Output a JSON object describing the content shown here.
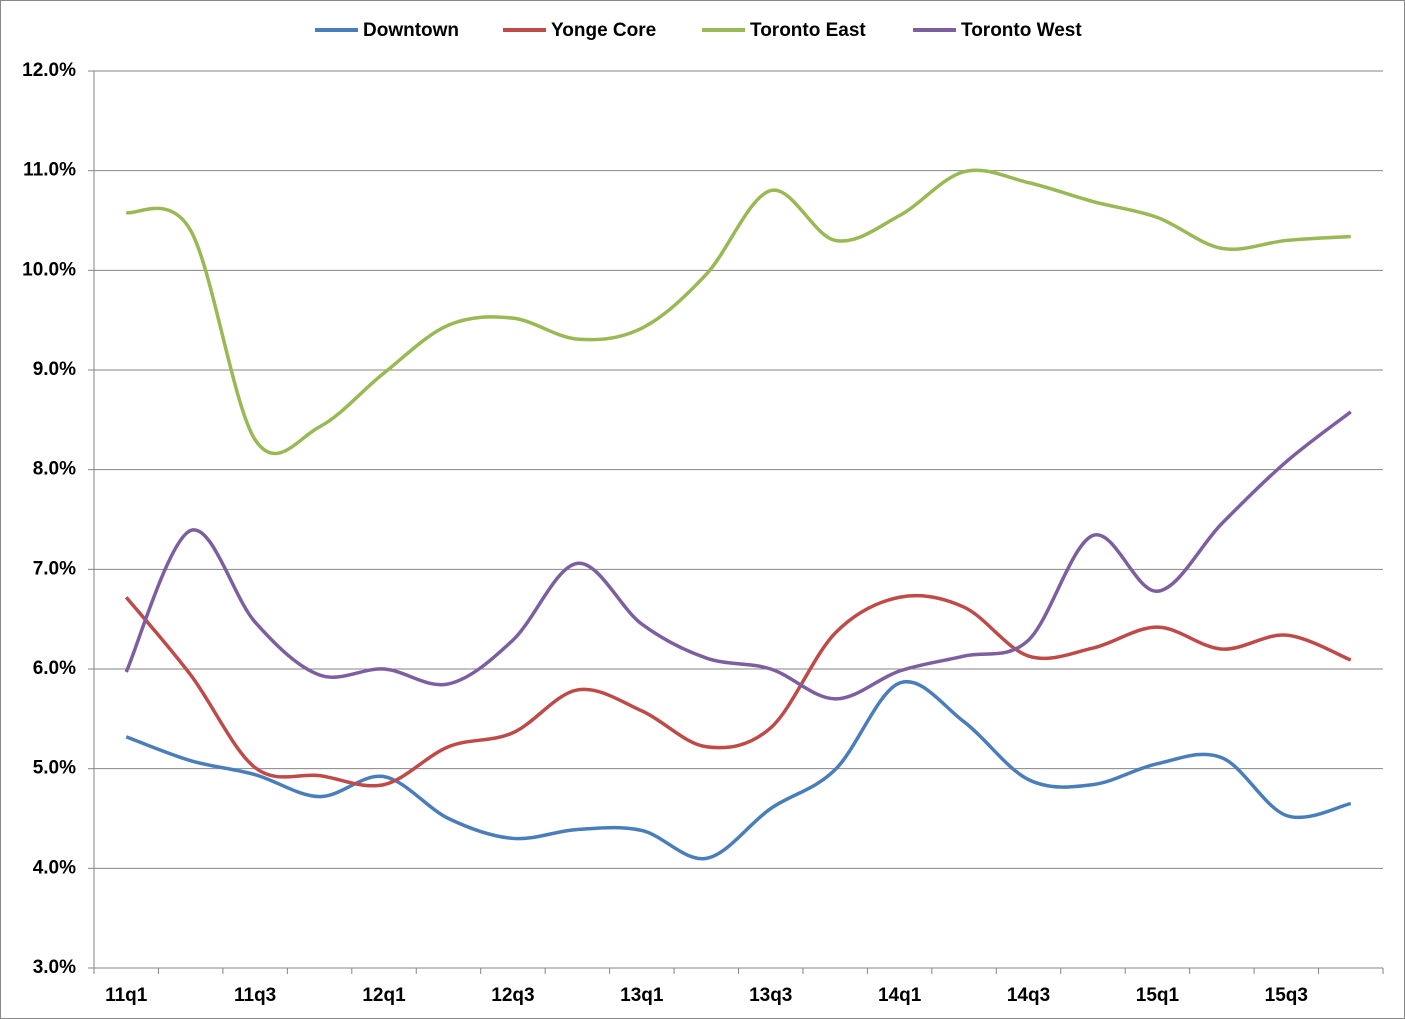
{
  "chart_data": {
    "type": "line",
    "categories": [
      "11q1",
      null,
      "11q3",
      null,
      "12q1",
      null,
      "12q3",
      null,
      "13q1",
      null,
      "13q3",
      null,
      "14q1",
      null,
      "14q3",
      null,
      "15q1",
      null,
      "15q3",
      null
    ],
    "series": [
      {
        "name": "Downtown",
        "color": "#4a7ebb",
        "values": [
          5.32,
          5.08,
          4.94,
          4.72,
          4.92,
          4.5,
          4.3,
          4.39,
          4.38,
          4.1,
          4.6,
          4.99,
          5.86,
          5.47,
          4.89,
          4.84,
          5.05,
          5.11,
          4.53,
          4.65
        ]
      },
      {
        "name": "Yonge Core",
        "color": "#be4b48",
        "values": [
          6.72,
          5.94,
          5.01,
          4.93,
          4.84,
          5.22,
          5.36,
          5.79,
          5.58,
          5.22,
          5.41,
          6.36,
          6.72,
          6.62,
          6.13,
          6.21,
          6.42,
          6.2,
          6.34,
          6.09
        ]
      },
      {
        "name": "Toronto East",
        "color": "#98b954",
        "values": [
          10.58,
          10.4,
          8.3,
          8.43,
          8.97,
          9.45,
          9.52,
          9.31,
          9.42,
          9.96,
          10.8,
          10.3,
          10.55,
          10.99,
          10.88,
          10.69,
          10.53,
          10.22,
          10.3,
          10.34
        ]
      },
      {
        "name": "Toronto West",
        "color": "#7d5fa0",
        "values": [
          5.97,
          7.39,
          6.47,
          5.94,
          6.0,
          5.85,
          6.29,
          7.06,
          6.45,
          6.11,
          6.0,
          5.7,
          5.98,
          6.13,
          6.29,
          7.34,
          6.78,
          7.46,
          8.08,
          8.58
        ]
      }
    ],
    "ylim": [
      3,
      12
    ],
    "yticks": [
      {
        "value": 3,
        "label": "3.0%"
      },
      {
        "value": 4,
        "label": "4.0%"
      },
      {
        "value": 5,
        "label": "5.0%"
      },
      {
        "value": 6,
        "label": "6.0%"
      },
      {
        "value": 7,
        "label": "7.0%"
      },
      {
        "value": 8,
        "label": "8.0%"
      },
      {
        "value": 9,
        "label": "9.0%"
      },
      {
        "value": 10,
        "label": "10.0%"
      },
      {
        "value": 11,
        "label": "11.0%"
      },
      {
        "value": 12,
        "label": "12.0%"
      }
    ],
    "grid": true,
    "legend": "top"
  }
}
